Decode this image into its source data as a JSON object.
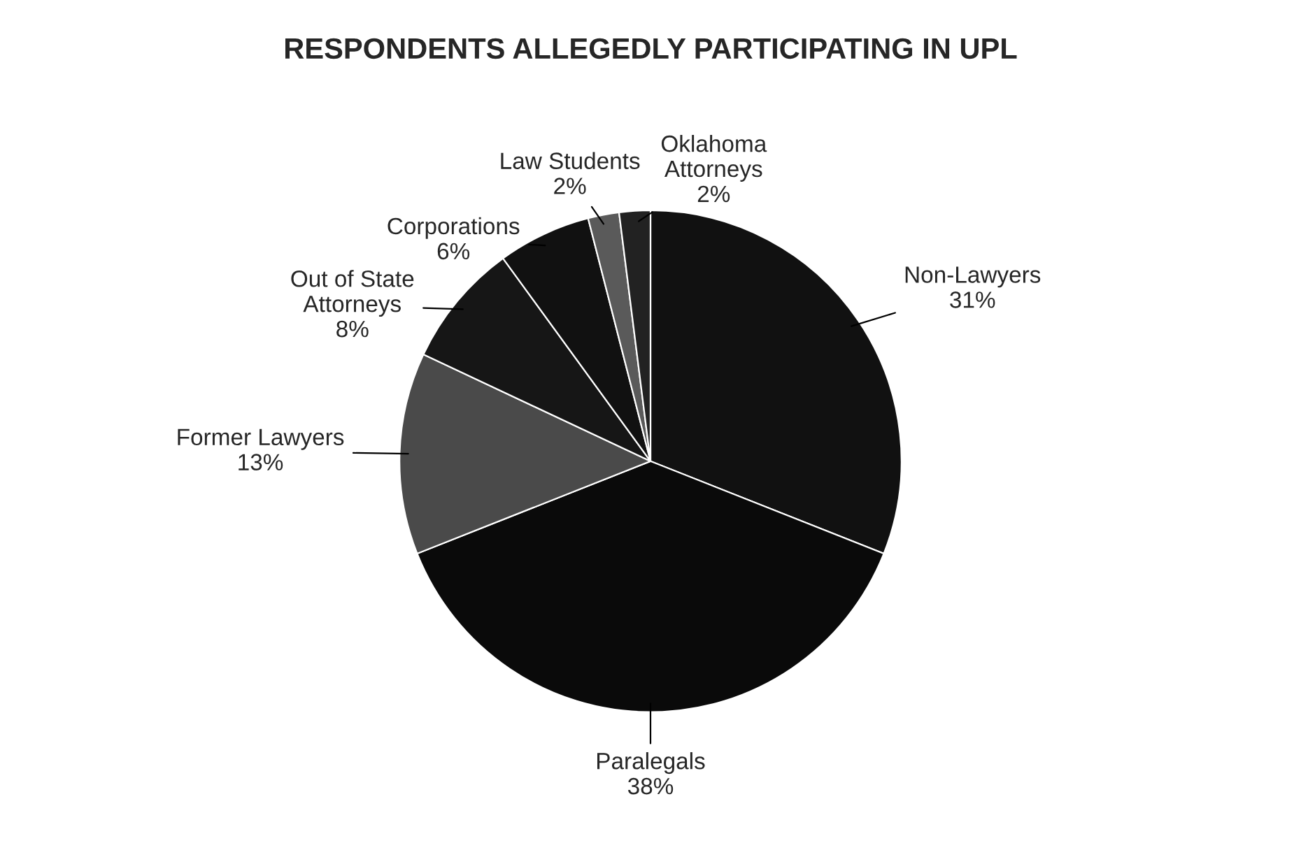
{
  "chart_data": {
    "type": "pie",
    "title": "RESPONDENTS ALLEGEDLY PARTICIPATING IN UPL",
    "categories": [
      "Non-Lawyers",
      "Paralegals",
      "Former Lawyers",
      "Out of State Attorneys",
      "Corporations",
      "Law Students",
      "Oklahoma Attorneys"
    ],
    "values": [
      31,
      38,
      13,
      8,
      6,
      2,
      2
    ],
    "value_labels": [
      "31%",
      "38%",
      "13%",
      "8%",
      "6%",
      "2%",
      "2%"
    ],
    "colors": [
      "#111111",
      "#0a0a0a",
      "#4a4a4a",
      "#161616",
      "#111111",
      "#5a5a5a",
      "#222222"
    ],
    "legend": false
  }
}
